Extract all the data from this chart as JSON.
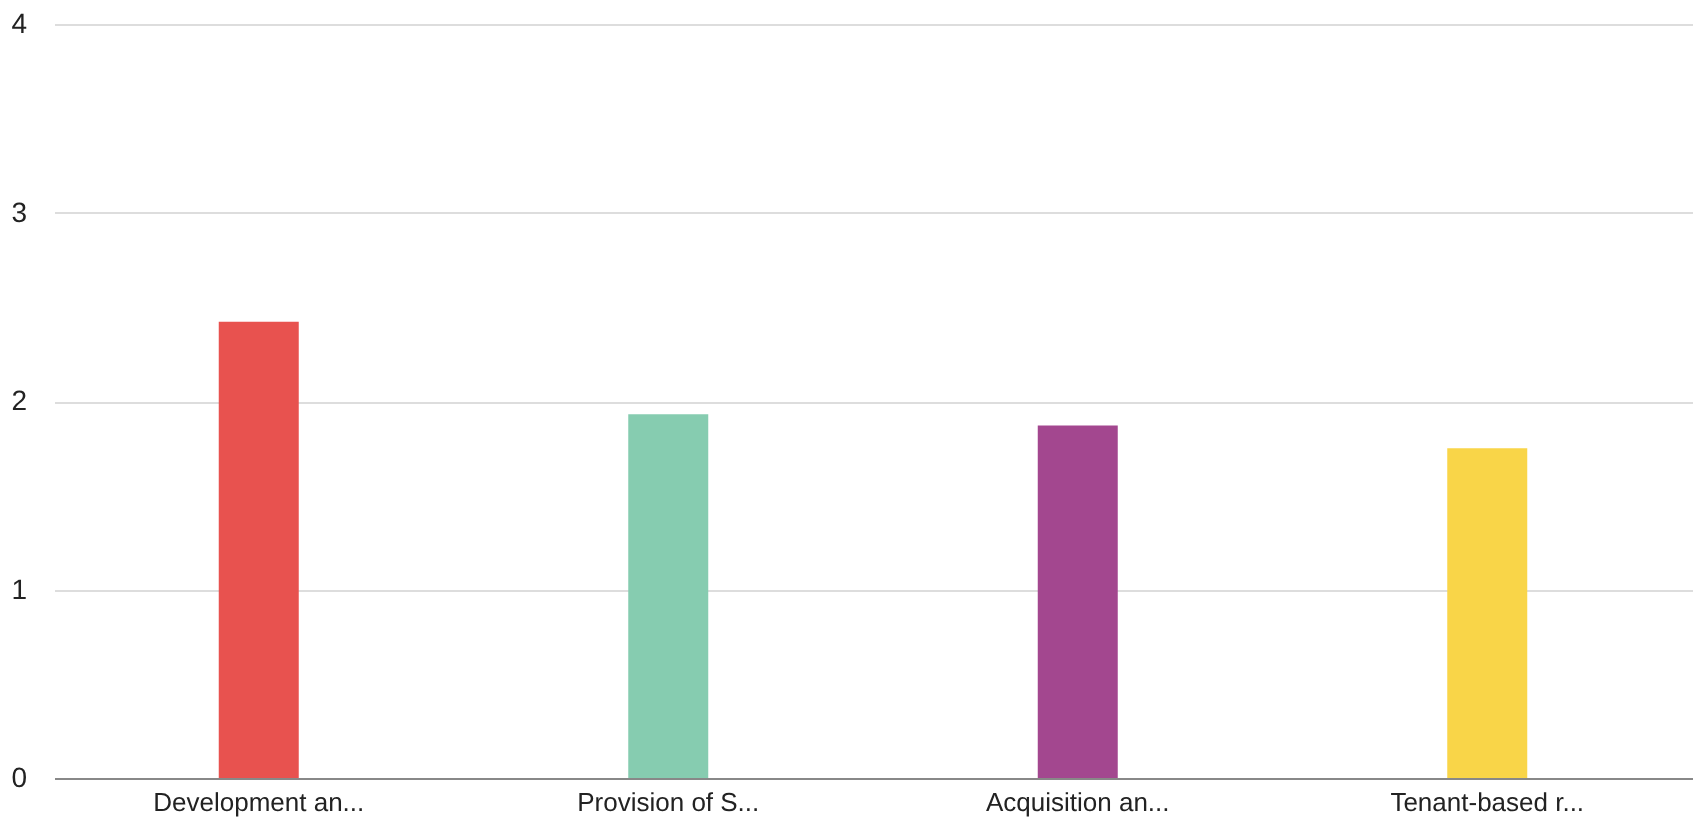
{
  "chart_data": {
    "type": "bar",
    "categories": [
      "Development an...",
      "Provision of S...",
      "Acquisition an...",
      "Tenant-based r..."
    ],
    "values": [
      2.42,
      1.93,
      1.87,
      1.75
    ],
    "colors": [
      "#e8524f",
      "#86ccb0",
      "#a3478f",
      "#f9d548"
    ],
    "ylim": [
      0,
      4
    ],
    "yticks": [
      0,
      1,
      2,
      3,
      4
    ],
    "grid": "y"
  }
}
